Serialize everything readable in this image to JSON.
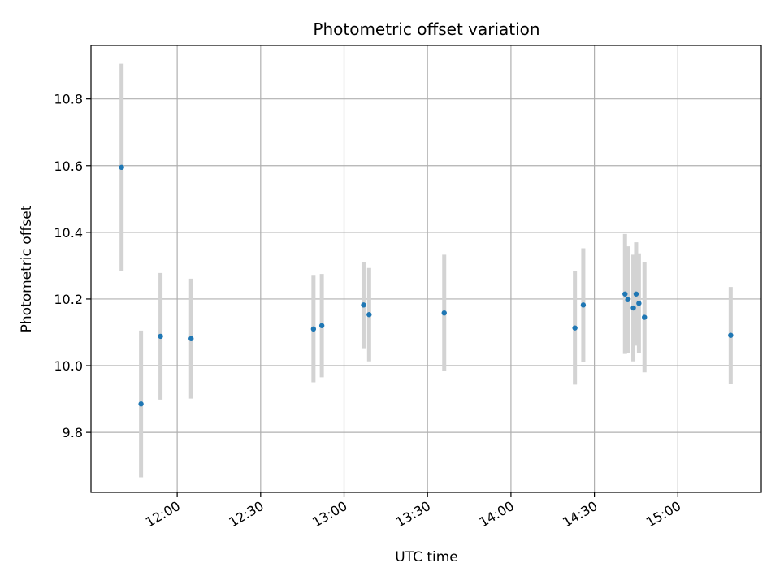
{
  "chart_data": {
    "type": "scatter",
    "title": "Photometric offset variation",
    "xlabel": "UTC time",
    "ylabel": "Photometric offset",
    "x_ticks": [
      "12:00",
      "12:30",
      "13:00",
      "13:30",
      "14:00",
      "14:30",
      "15:00"
    ],
    "y_ticks": [
      "9.8",
      "10.0",
      "10.2",
      "10.4",
      "10.6",
      "10.8"
    ],
    "ylim": [
      9.62,
      10.96
    ],
    "xlim": [
      "11:29",
      "15:30"
    ],
    "grid": true,
    "colors": {
      "point": "#1f77b4",
      "errorbar": "#d3d3d3",
      "grid": "#b0b0b0"
    },
    "points": [
      {
        "time": "11:40",
        "value": 10.595,
        "err": 0.31
      },
      {
        "time": "11:47",
        "value": 9.885,
        "err": 0.22
      },
      {
        "time": "11:54",
        "value": 10.088,
        "err": 0.19
      },
      {
        "time": "12:05",
        "value": 10.081,
        "err": 0.18
      },
      {
        "time": "12:49",
        "value": 10.11,
        "err": 0.16
      },
      {
        "time": "12:52",
        "value": 10.12,
        "err": 0.155
      },
      {
        "time": "13:07",
        "value": 10.182,
        "err": 0.13
      },
      {
        "time": "13:09",
        "value": 10.153,
        "err": 0.14
      },
      {
        "time": "13:36",
        "value": 10.158,
        "err": 0.175
      },
      {
        "time": "14:23",
        "value": 10.113,
        "err": 0.17
      },
      {
        "time": "14:26",
        "value": 10.182,
        "err": 0.17
      },
      {
        "time": "14:41",
        "value": 10.215,
        "err": 0.18
      },
      {
        "time": "14:42",
        "value": 10.198,
        "err": 0.16
      },
      {
        "time": "14:44",
        "value": 10.173,
        "err": 0.16
      },
      {
        "time": "14:45",
        "value": 10.215,
        "err": 0.155
      },
      {
        "time": "14:46",
        "value": 10.187,
        "err": 0.15
      },
      {
        "time": "14:48",
        "value": 10.145,
        "err": 0.165
      },
      {
        "time": "15:19",
        "value": 10.091,
        "err": 0.145
      }
    ]
  }
}
